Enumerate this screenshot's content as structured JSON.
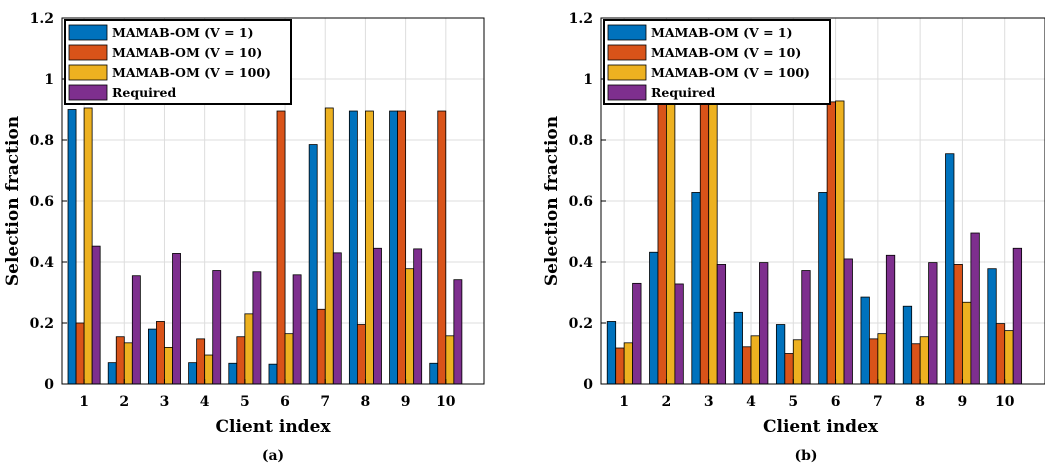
{
  "colors": {
    "s0": "#0072BD",
    "s1": "#D95319",
    "s2": "#EDB120",
    "s3": "#7E2F8E",
    "grid": "#dddddd"
  },
  "chart_data": [
    {
      "type": "bar",
      "caption": "(a)",
      "xlabel": "Client index",
      "ylabel": "Selection fraction",
      "categories": [
        "1",
        "2",
        "3",
        "4",
        "5",
        "6",
        "7",
        "8",
        "9",
        "10"
      ],
      "ylim": [
        0,
        1.2
      ],
      "yticks": [
        "0",
        "0.2",
        "0.4",
        "0.6",
        "0.8",
        "1",
        "1.2"
      ],
      "grid": true,
      "legend_position": "top-left",
      "series": [
        {
          "name": "MAMAB-OM (V = 1)",
          "values": [
            0.9,
            0.07,
            0.18,
            0.07,
            0.068,
            0.065,
            0.785,
            0.895,
            0.895,
            0.068
          ]
        },
        {
          "name": "MAMAB-OM (V = 10)",
          "values": [
            0.2,
            0.155,
            0.205,
            0.148,
            0.155,
            0.895,
            0.245,
            0.195,
            0.895,
            0.895
          ]
        },
        {
          "name": "MAMAB-OM (V = 100)",
          "values": [
            0.905,
            0.135,
            0.12,
            0.095,
            0.23,
            0.165,
            0.905,
            0.895,
            0.378,
            0.158
          ]
        },
        {
          "name": "Required",
          "values": [
            0.452,
            0.355,
            0.428,
            0.372,
            0.368,
            0.358,
            0.43,
            0.445,
            0.443,
            0.342
          ]
        }
      ]
    },
    {
      "type": "bar",
      "caption": "(b)",
      "xlabel": "Client index",
      "ylabel": "Selection fraction",
      "categories": [
        "1",
        "2",
        "3",
        "4",
        "5",
        "6",
        "7",
        "8",
        "9",
        "10"
      ],
      "ylim": [
        0,
        1.2
      ],
      "yticks": [
        "0",
        "0.2",
        "0.4",
        "0.6",
        "0.8",
        "1",
        "1.2"
      ],
      "grid": true,
      "legend_position": "top-left",
      "series": [
        {
          "name": "MAMAB-OM (V = 1)",
          "values": [
            0.205,
            0.432,
            0.628,
            0.235,
            0.195,
            0.628,
            0.285,
            0.255,
            0.755,
            0.378
          ]
        },
        {
          "name": "MAMAB-OM (V = 10)",
          "values": [
            0.118,
            0.93,
            0.93,
            0.122,
            0.1,
            0.925,
            0.148,
            0.132,
            0.392,
            0.198
          ]
        },
        {
          "name": "MAMAB-OM (V = 100)",
          "values": [
            0.135,
            0.93,
            0.93,
            0.158,
            0.145,
            0.928,
            0.165,
            0.155,
            0.268,
            0.175
          ]
        },
        {
          "name": "Required",
          "values": [
            0.33,
            0.328,
            0.392,
            0.398,
            0.372,
            0.41,
            0.422,
            0.398,
            0.495,
            0.445
          ]
        }
      ]
    }
  ]
}
